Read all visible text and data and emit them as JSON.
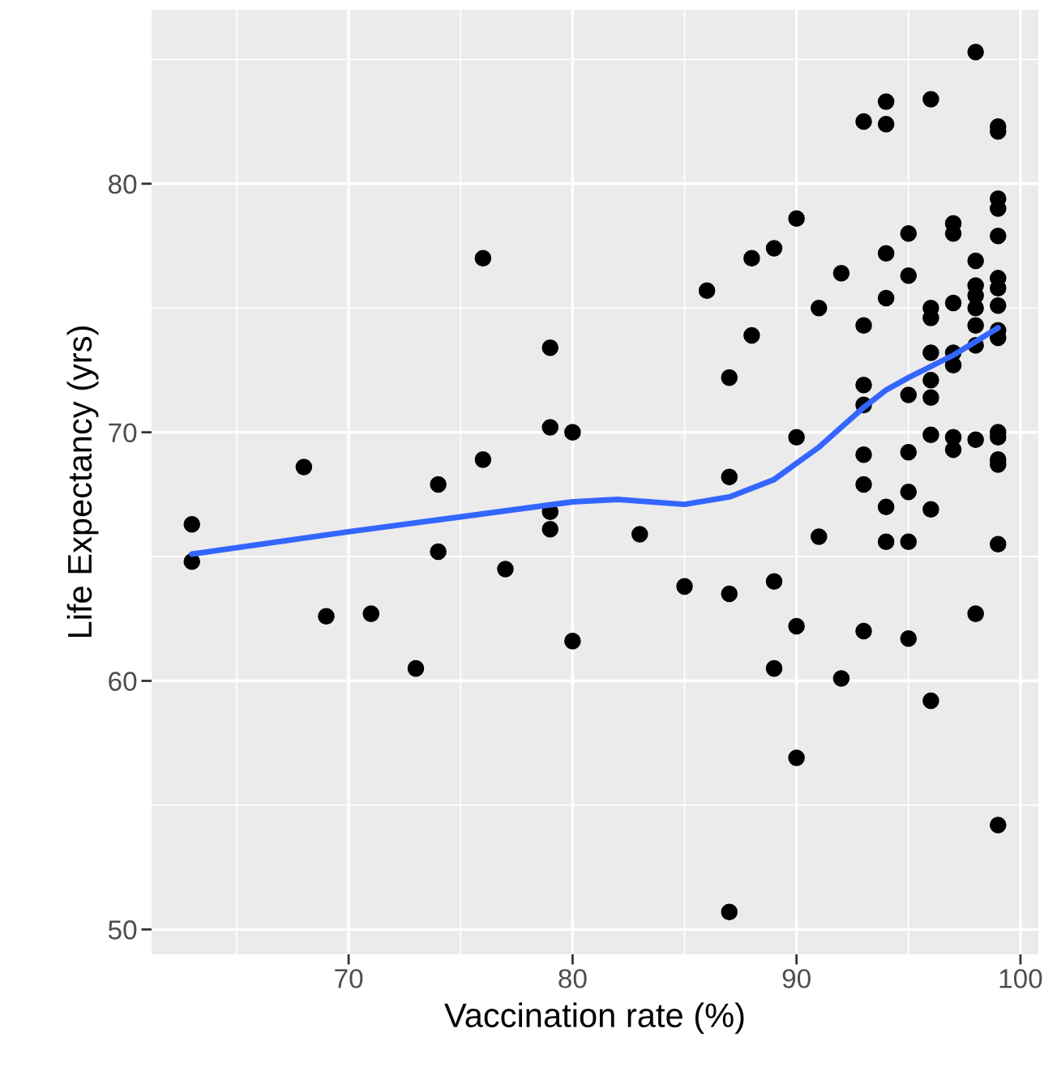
{
  "chart_data": {
    "type": "scatter",
    "xlabel": "Vaccination rate (%)",
    "ylabel": "Life Expectancy (yrs)",
    "xlim": [
      61.2,
      100.8
    ],
    "ylim": [
      49.0,
      87.0
    ],
    "xticks": [
      70,
      80,
      90,
      100
    ],
    "yticks": [
      50,
      60,
      70,
      80
    ],
    "grid": true,
    "legend": false,
    "series": [
      {
        "color": "#000000",
        "marker": "circle",
        "x": [
          63,
          63,
          68,
          69,
          71,
          73,
          74,
          74,
          76,
          76,
          77,
          79,
          79,
          79,
          79,
          80,
          80,
          83,
          85,
          86,
          87,
          87,
          87,
          87,
          88,
          88,
          89,
          89,
          89,
          90,
          90,
          90,
          90,
          91,
          91,
          92,
          92,
          93,
          93,
          93,
          93,
          93,
          93,
          93,
          94,
          94,
          94,
          94,
          94,
          94,
          95,
          95,
          95,
          95,
          95,
          95,
          95,
          96,
          96,
          96,
          96,
          96,
          96,
          96,
          96,
          96,
          97,
          97,
          97,
          97,
          97,
          97,
          97,
          98,
          98,
          98,
          98,
          98,
          98,
          98,
          98,
          98,
          99,
          99,
          99,
          99,
          99,
          99,
          99,
          99,
          99,
          99,
          99,
          99,
          99,
          99,
          99,
          99
        ],
        "values": [
          66.3,
          64.8,
          68.6,
          62.6,
          62.7,
          60.5,
          67.9,
          65.2,
          77.0,
          68.9,
          64.5,
          73.4,
          70.2,
          66.8,
          66.1,
          70.0,
          61.6,
          65.9,
          63.8,
          75.7,
          72.2,
          68.2,
          63.5,
          50.7,
          77.0,
          73.9,
          77.4,
          64.0,
          60.5,
          78.6,
          69.8,
          62.2,
          56.9,
          75.0,
          65.8,
          76.4,
          60.1,
          82.5,
          74.3,
          71.9,
          71.1,
          69.1,
          67.9,
          62.0,
          83.3,
          82.4,
          77.2,
          75.4,
          67.0,
          65.6,
          78.0,
          76.3,
          71.5,
          69.2,
          67.6,
          65.6,
          61.7,
          83.4,
          75.0,
          74.6,
          73.2,
          72.1,
          71.4,
          69.9,
          66.9,
          59.2,
          78.4,
          78.0,
          75.2,
          73.2,
          72.7,
          69.8,
          69.3,
          85.3,
          76.9,
          75.9,
          75.5,
          75.0,
          74.3,
          73.5,
          69.7,
          62.7,
          82.3,
          82.1,
          79.4,
          79.0,
          77.9,
          76.2,
          75.8,
          75.1,
          74.1,
          73.8,
          70.0,
          69.8,
          68.9,
          68.7,
          65.5,
          54.2
        ]
      },
      {
        "type": "line",
        "color": "#3366ff",
        "marker": "none",
        "line_style": "solid",
        "x": [
          63,
          70,
          75,
          80,
          82,
          85,
          87,
          89,
          91,
          93,
          94,
          95,
          97,
          99
        ],
        "values": [
          65.1,
          66.0,
          66.6,
          67.2,
          67.3,
          67.1,
          67.4,
          68.1,
          69.4,
          71.0,
          71.7,
          72.2,
          73.1,
          74.2
        ]
      }
    ]
  }
}
